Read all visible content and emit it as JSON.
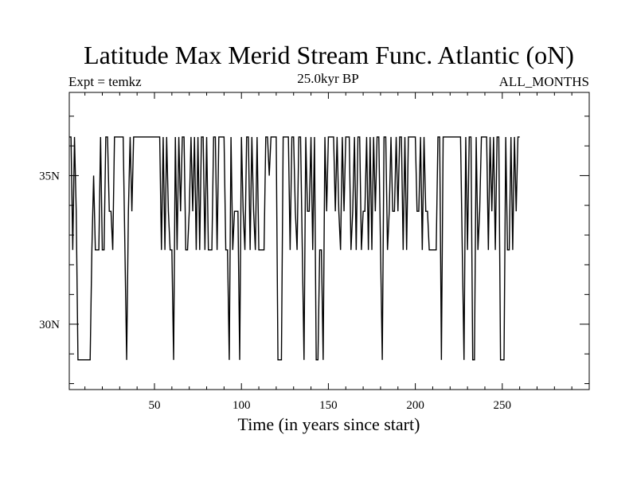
{
  "chart_data": {
    "type": "line",
    "title": "Latitude Max Merid Stream Func. Atlantic (oN)",
    "left_subtitle": "Expt = temkz",
    "center_subtitle": "25.0kyr BP",
    "right_subtitle": "ALL_MONTHS",
    "xlabel": "Time (in years since start)",
    "ylabel": "",
    "xlim": [
      1,
      300
    ],
    "ylim": [
      27.8,
      37.8
    ],
    "x_ticks": [
      50,
      100,
      150,
      200,
      250
    ],
    "x_tick_labels": [
      "50",
      "100",
      "150",
      "200",
      "250"
    ],
    "y_ticks": [
      30,
      35
    ],
    "y_tick_labels": [
      "30N",
      "35N"
    ],
    "grid": false,
    "series": [
      {
        "color": "#000000",
        "x_start": 1,
        "x_step": 1,
        "values": [
          36.3,
          36.3,
          32.5,
          36.3,
          33.8,
          28.8,
          28.8,
          28.8,
          28.8,
          28.8,
          28.8,
          28.8,
          28.8,
          32.5,
          35.0,
          32.5,
          32.5,
          32.5,
          36.3,
          32.5,
          32.5,
          36.3,
          36.3,
          33.8,
          33.8,
          32.5,
          36.3,
          36.3,
          36.3,
          36.3,
          36.3,
          36.3,
          32.5,
          28.8,
          33.8,
          36.3,
          33.8,
          36.3,
          36.3,
          36.3,
          36.3,
          36.3,
          36.3,
          36.3,
          36.3,
          36.3,
          36.3,
          36.3,
          36.3,
          36.3,
          36.3,
          36.3,
          36.3,
          32.5,
          36.3,
          32.5,
          36.3,
          33.8,
          32.5,
          32.5,
          28.8,
          36.3,
          32.5,
          36.3,
          33.8,
          36.3,
          36.3,
          32.5,
          32.5,
          33.8,
          36.3,
          33.8,
          36.3,
          32.5,
          36.3,
          32.5,
          36.3,
          36.3,
          32.5,
          36.3,
          32.5,
          32.5,
          32.5,
          36.3,
          36.3,
          32.5,
          36.3,
          36.3,
          36.3,
          36.3,
          32.5,
          32.5,
          28.8,
          36.3,
          32.5,
          33.8,
          33.8,
          33.8,
          28.8,
          36.3,
          33.8,
          32.5,
          36.3,
          36.3,
          32.5,
          36.3,
          33.8,
          32.5,
          36.3,
          32.5,
          32.5,
          32.5,
          32.5,
          36.3,
          36.3,
          35.0,
          36.3,
          36.3,
          36.3,
          36.3,
          28.8,
          28.8,
          28.8,
          36.3,
          36.3,
          36.3,
          36.3,
          32.5,
          36.3,
          36.3,
          33.8,
          32.5,
          36.3,
          36.3,
          32.5,
          28.8,
          36.3,
          33.8,
          33.8,
          36.3,
          32.5,
          36.3,
          28.8,
          28.8,
          32.5,
          32.5,
          28.8,
          36.3,
          33.8,
          36.3,
          36.3,
          36.3,
          36.3,
          33.8,
          36.3,
          33.8,
          32.5,
          36.3,
          33.8,
          36.3,
          36.3,
          36.3,
          32.5,
          33.8,
          36.3,
          32.5,
          36.3,
          36.3,
          32.5,
          33.8,
          33.8,
          36.3,
          32.5,
          36.3,
          32.5,
          36.3,
          33.8,
          36.3,
          36.3,
          32.5,
          28.8,
          36.3,
          36.3,
          32.5,
          33.8,
          36.3,
          33.8,
          33.8,
          36.3,
          33.8,
          36.3,
          36.3,
          32.5,
          36.3,
          32.5,
          36.3,
          36.3,
          36.3,
          36.3,
          36.3,
          33.8,
          33.8,
          36.3,
          32.5,
          36.3,
          33.8,
          33.8,
          32.5,
          32.5,
          32.5,
          32.5,
          32.5,
          36.3,
          36.3,
          28.8,
          36.3,
          36.3,
          36.3,
          36.3,
          36.3,
          36.3,
          36.3,
          36.3,
          36.3,
          36.3,
          36.3,
          32.5,
          28.8,
          36.3,
          32.5,
          36.3,
          36.3,
          28.8,
          28.8,
          36.3,
          32.5,
          33.8,
          36.3,
          36.3,
          36.3,
          36.3,
          32.5,
          36.3,
          33.8,
          36.3,
          32.5,
          36.3,
          36.3,
          28.8,
          28.8,
          28.8,
          36.3,
          32.5,
          32.5,
          36.3,
          32.5,
          36.3,
          33.8,
          36.3,
          36.3
        ]
      }
    ]
  }
}
